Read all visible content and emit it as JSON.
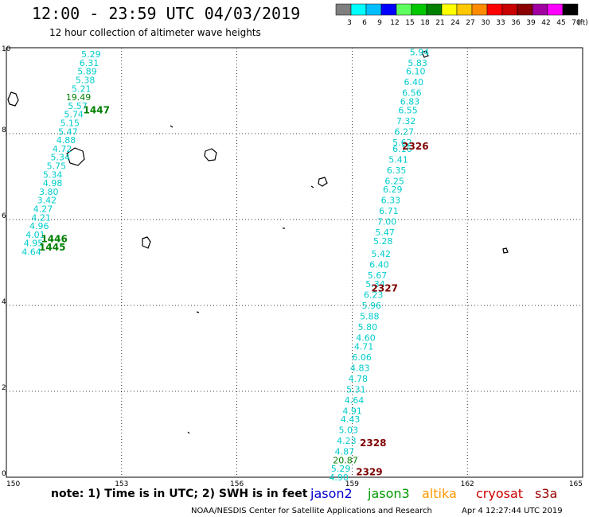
{
  "header": {
    "title": "12:00 - 23:59 UTC 04/03/2019",
    "subtitle": "12 hour collection of altimeter wave heights"
  },
  "color_scale": {
    "unit": "(ft)",
    "bins": [
      {
        "label": "3",
        "color": "#7f7f7f"
      },
      {
        "label": "6",
        "color": "#00ffff"
      },
      {
        "label": "9",
        "color": "#00bfff"
      },
      {
        "label": "12",
        "color": "#0000ff"
      },
      {
        "label": "15",
        "color": "#5fff5f"
      },
      {
        "label": "18",
        "color": "#00c800"
      },
      {
        "label": "21",
        "color": "#008000"
      },
      {
        "label": "24",
        "color": "#ffff00"
      },
      {
        "label": "27",
        "color": "#ffc800"
      },
      {
        "label": "30",
        "color": "#ff8c00"
      },
      {
        "label": "33",
        "color": "#ff0000"
      },
      {
        "label": "36",
        "color": "#c80000"
      },
      {
        "label": "39",
        "color": "#8b0000"
      },
      {
        "label": "42",
        "color": "#a000a0"
      },
      {
        "label": "45",
        "color": "#ff00ff"
      },
      {
        "label": "70",
        "color": "#000000"
      }
    ]
  },
  "axes": {
    "x_ticks": [
      "150",
      "153",
      "156",
      "159",
      "162",
      "165"
    ],
    "y_ticks": [
      "0",
      "2",
      "4",
      "6",
      "8",
      "10"
    ]
  },
  "tracks": [
    {
      "time": "1447",
      "color": "#007f00",
      "lon": 152.0,
      "lat": 8.55
    },
    {
      "time": "1446",
      "color": "#007f00",
      "lon": 150.9,
      "lat": 5.55
    },
    {
      "time": "1445",
      "color": "#007f00",
      "lon": 150.85,
      "lat": 5.35
    },
    {
      "time": "2326",
      "color": "#7f0000",
      "lon": 160.3,
      "lat": 7.7
    },
    {
      "time": "2327",
      "color": "#7f0000",
      "lon": 159.5,
      "lat": 4.4
    },
    {
      "time": "2328",
      "color": "#7f0000",
      "lon": 159.2,
      "lat": 0.8
    },
    {
      "time": "2329",
      "color": "#7f0000",
      "lon": 159.1,
      "lat": 0.12
    }
  ],
  "wave_heights_west": [
    {
      "v": "5.29",
      "lon": 151.95,
      "lat": 9.85
    },
    {
      "v": "6.31",
      "lon": 151.9,
      "lat": 9.65
    },
    {
      "v": "5.89",
      "lon": 151.85,
      "lat": 9.45
    },
    {
      "v": "5.38",
      "lon": 151.8,
      "lat": 9.25
    },
    {
      "v": "5.21",
      "lon": 151.7,
      "lat": 9.05
    },
    {
      "v": "19.49",
      "lon": 151.55,
      "lat": 8.85,
      "color": "#007f00"
    },
    {
      "v": "5.57",
      "lon": 151.6,
      "lat": 8.65
    },
    {
      "v": "5.74",
      "lon": 151.5,
      "lat": 8.45
    },
    {
      "v": "5.15",
      "lon": 151.4,
      "lat": 8.25
    },
    {
      "v": "5.47",
      "lon": 151.35,
      "lat": 8.05
    },
    {
      "v": "4.88",
      "lon": 151.3,
      "lat": 7.85
    },
    {
      "v": "4.72",
      "lon": 151.2,
      "lat": 7.65
    },
    {
      "v": "5.34",
      "lon": 151.15,
      "lat": 7.45
    },
    {
      "v": "5.75",
      "lon": 151.05,
      "lat": 7.25
    },
    {
      "v": "5.34",
      "lon": 150.95,
      "lat": 7.05
    },
    {
      "v": "4.98",
      "lon": 150.95,
      "lat": 6.85
    },
    {
      "v": "3.80",
      "lon": 150.85,
      "lat": 6.65
    },
    {
      "v": "3.42",
      "lon": 150.8,
      "lat": 6.45
    },
    {
      "v": "4.27",
      "lon": 150.7,
      "lat": 6.25
    },
    {
      "v": "4.21",
      "lon": 150.65,
      "lat": 6.05
    },
    {
      "v": "4.96",
      "lon": 150.6,
      "lat": 5.85
    },
    {
      "v": "4.01",
      "lon": 150.5,
      "lat": 5.65
    },
    {
      "v": "4.95",
      "lon": 150.45,
      "lat": 5.45
    },
    {
      "v": "4.64",
      "lon": 150.4,
      "lat": 5.25
    }
  ],
  "wave_heights_east": [
    {
      "v": "5.94",
      "lon": 160.5,
      "lat": 9.9
    },
    {
      "v": "5.83",
      "lon": 160.45,
      "lat": 9.65
    },
    {
      "v": "6.10",
      "lon": 160.4,
      "lat": 9.45
    },
    {
      "v": "6.40",
      "lon": 160.35,
      "lat": 9.2
    },
    {
      "v": "6.56",
      "lon": 160.3,
      "lat": 8.95
    },
    {
      "v": "6.83",
      "lon": 160.25,
      "lat": 8.75
    },
    {
      "v": "6.55",
      "lon": 160.2,
      "lat": 8.55
    },
    {
      "v": "7.32",
      "lon": 160.15,
      "lat": 8.3
    },
    {
      "v": "6.27",
      "lon": 160.1,
      "lat": 8.05
    },
    {
      "v": "5.62",
      "lon": 160.05,
      "lat": 7.8
    },
    {
      "v": "6.16",
      "lon": 160.05,
      "lat": 7.65
    },
    {
      "v": "5.41",
      "lon": 159.95,
      "lat": 7.4
    },
    {
      "v": "6.35",
      "lon": 159.9,
      "lat": 7.15
    },
    {
      "v": "6.25",
      "lon": 159.85,
      "lat": 6.9
    },
    {
      "v": "6.29",
      "lon": 159.8,
      "lat": 6.7
    },
    {
      "v": "6.33",
      "lon": 159.75,
      "lat": 6.45
    },
    {
      "v": "6.71",
      "lon": 159.7,
      "lat": 6.2
    },
    {
      "v": "7.00",
      "lon": 159.65,
      "lat": 5.95
    },
    {
      "v": "5.47",
      "lon": 159.6,
      "lat": 5.7
    },
    {
      "v": "5.28",
      "lon": 159.55,
      "lat": 5.5
    },
    {
      "v": "5.42",
      "lon": 159.5,
      "lat": 5.2
    },
    {
      "v": "6.40",
      "lon": 159.45,
      "lat": 4.95
    },
    {
      "v": "5.67",
      "lon": 159.4,
      "lat": 4.7
    },
    {
      "v": "5.34",
      "lon": 159.35,
      "lat": 4.5
    },
    {
      "v": "6.23",
      "lon": 159.3,
      "lat": 4.25
    },
    {
      "v": "5.96",
      "lon": 159.25,
      "lat": 4.0
    },
    {
      "v": "5.88",
      "lon": 159.2,
      "lat": 3.75
    },
    {
      "v": "5.80",
      "lon": 159.15,
      "lat": 3.5
    },
    {
      "v": "4.60",
      "lon": 159.1,
      "lat": 3.25
    },
    {
      "v": "4.71",
      "lon": 159.05,
      "lat": 3.05
    },
    {
      "v": "6.06",
      "lon": 159.0,
      "lat": 2.8
    },
    {
      "v": "4.83",
      "lon": 158.95,
      "lat": 2.55
    },
    {
      "v": "4.78",
      "lon": 158.9,
      "lat": 2.3
    },
    {
      "v": "5.31",
      "lon": 158.85,
      "lat": 2.05
    },
    {
      "v": "4.64",
      "lon": 158.8,
      "lat": 1.8
    },
    {
      "v": "4.91",
      "lon": 158.75,
      "lat": 1.55
    },
    {
      "v": "4.43",
      "lon": 158.7,
      "lat": 1.35
    },
    {
      "v": "5.03",
      "lon": 158.65,
      "lat": 1.1
    },
    {
      "v": "4.23",
      "lon": 158.6,
      "lat": 0.85
    },
    {
      "v": "4.87",
      "lon": 158.55,
      "lat": 0.6
    },
    {
      "v": "20.87",
      "lon": 158.5,
      "lat": 0.4,
      "color": "#007f00"
    },
    {
      "v": "5.29",
      "lon": 158.45,
      "lat": 0.2
    },
    {
      "v": "4.90",
      "lon": 158.4,
      "lat": 0.0
    }
  ],
  "footer": {
    "note": "note: 1) Time is in UTC; 2) SWH is in feet",
    "missions": [
      {
        "name": "jason2",
        "color": "#0000cc"
      },
      {
        "name": "jason3",
        "color": "#009900"
      },
      {
        "name": "altika",
        "color": "#ff9900"
      },
      {
        "name": "cryosat",
        "color": "#cc0000"
      },
      {
        "name": "s3a",
        "color": "#990000"
      }
    ],
    "credit": "NOAA/NESDIS Center for Satellite Applications and Research",
    "timestamp": "Apr  4 12:27:44 UTC 2019"
  }
}
